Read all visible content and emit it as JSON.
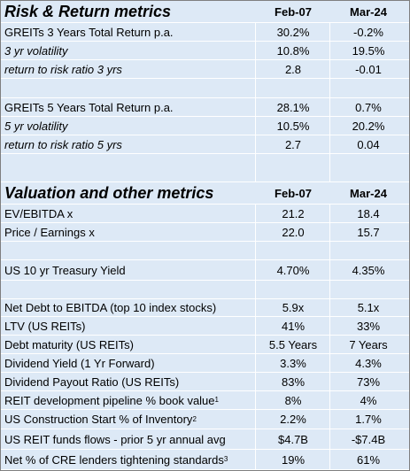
{
  "risk": {
    "title": "Risk & Return metrics",
    "col_feb": "Feb-07",
    "col_mar": "Mar-24",
    "rows": [
      {
        "label": "GREITs 3 Years Total Return p.a.",
        "feb": "30.2%",
        "mar": "-0.2%",
        "italic": false
      },
      {
        "label": "3 yr volatility",
        "feb": "10.8%",
        "mar": "19.5%",
        "italic": true
      },
      {
        "label": "return to risk ratio 3 yrs",
        "feb": "2.8",
        "mar": "-0.01",
        "italic": true
      },
      {
        "label": "GREITs 5 Years Total Return p.a.",
        "feb": "28.1%",
        "mar": "0.7%",
        "italic": false
      },
      {
        "label": "5 yr volatility",
        "feb": "10.5%",
        "mar": "20.2%",
        "italic": true
      },
      {
        "label": "return to risk ratio 5 yrs",
        "feb": "2.7",
        "mar": "0.04",
        "italic": true
      }
    ]
  },
  "valuation": {
    "title": "Valuation and other metrics",
    "col_feb": "Feb-07",
    "col_mar": "Mar-24",
    "rows": [
      {
        "label": "EV/EBITDA x",
        "feb": "21.2",
        "mar": "18.4"
      },
      {
        "label": "Price / Earnings x",
        "feb": "22.0",
        "mar": "15.7"
      },
      {
        "label": "US 10 yr Treasury Yield",
        "feb": "4.70%",
        "mar": "4.35%"
      },
      {
        "label": "Net Debt to EBITDA (top 10 index stocks)",
        "feb": "5.9x",
        "mar": "5.1x"
      },
      {
        "label": "LTV (US REITs)",
        "feb": "41%",
        "mar": "33%"
      },
      {
        "label": "Debt maturity (US REITs)",
        "feb": "5.5 Years",
        "mar": "7 Years"
      },
      {
        "label": "Dividend Yield (1 Yr Forward)",
        "feb": "3.3%",
        "mar": "4.3%"
      },
      {
        "label": "Dividend Payout Ratio (US REITs)",
        "feb": "83%",
        "mar": "73%"
      },
      {
        "label": "REIT development pipeline % book value",
        "sup": "1",
        "feb": "8%",
        "mar": "4%"
      },
      {
        "label": "US Construction Start % of Inventory",
        "sup": "2",
        "feb": "2.2%",
        "mar": "1.7%"
      },
      {
        "label": "US REIT funds flows - prior 5 yr annual avg",
        "feb": "$4.7B",
        "mar": "-$7.4B"
      },
      {
        "label": "Net % of CRE lenders tightening standards",
        "sup": "3",
        "feb": "19%",
        "mar": "61%"
      }
    ]
  }
}
